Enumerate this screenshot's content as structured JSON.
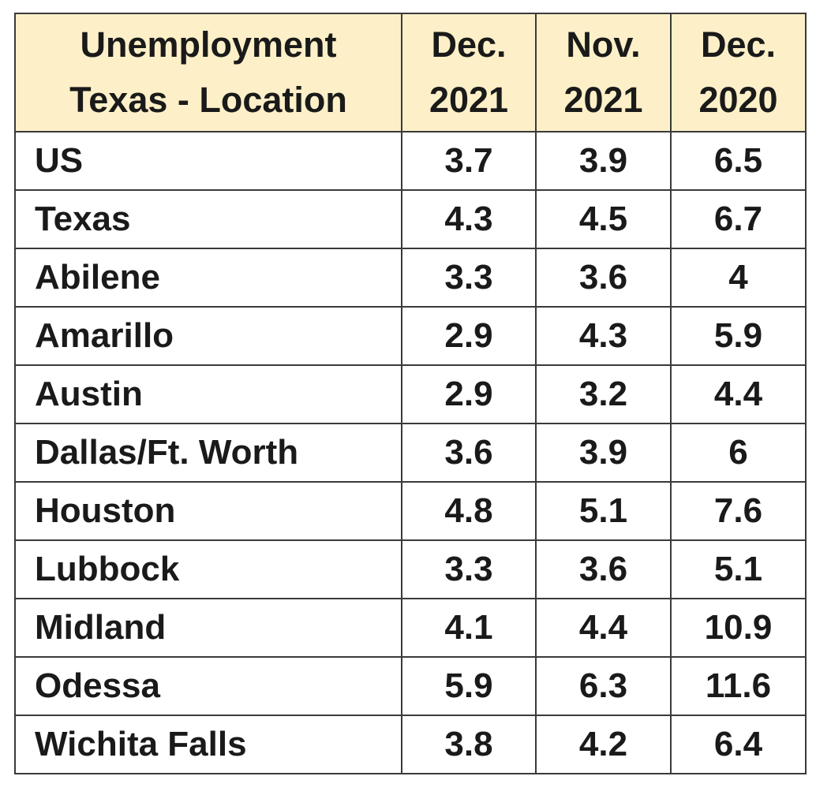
{
  "table": {
    "header": [
      [
        "Unemployment",
        "Texas - Location"
      ],
      [
        "Dec.",
        "2021"
      ],
      [
        "Nov.",
        "2021"
      ],
      [
        "Dec.",
        "2020"
      ]
    ],
    "rows": [
      [
        "US",
        3.7,
        3.9,
        6.5
      ],
      [
        "Texas",
        4.3,
        4.5,
        6.7
      ],
      [
        "Abilene",
        3.3,
        3.6,
        4
      ],
      [
        "Amarillo",
        2.9,
        4.3,
        5.9
      ],
      [
        "Austin",
        2.9,
        3.2,
        4.4
      ],
      [
        "Dallas/Ft. Worth",
        3.6,
        3.9,
        6
      ],
      [
        "Houston",
        4.8,
        5.1,
        7.6
      ],
      [
        "Lubbock",
        3.3,
        3.6,
        5.1
      ],
      [
        "Midland",
        4.1,
        4.4,
        10.9
      ],
      [
        "Odessa",
        5.9,
        6.3,
        11.6
      ],
      [
        "Wichita Falls",
        3.8,
        4.2,
        6.4
      ]
    ]
  }
}
